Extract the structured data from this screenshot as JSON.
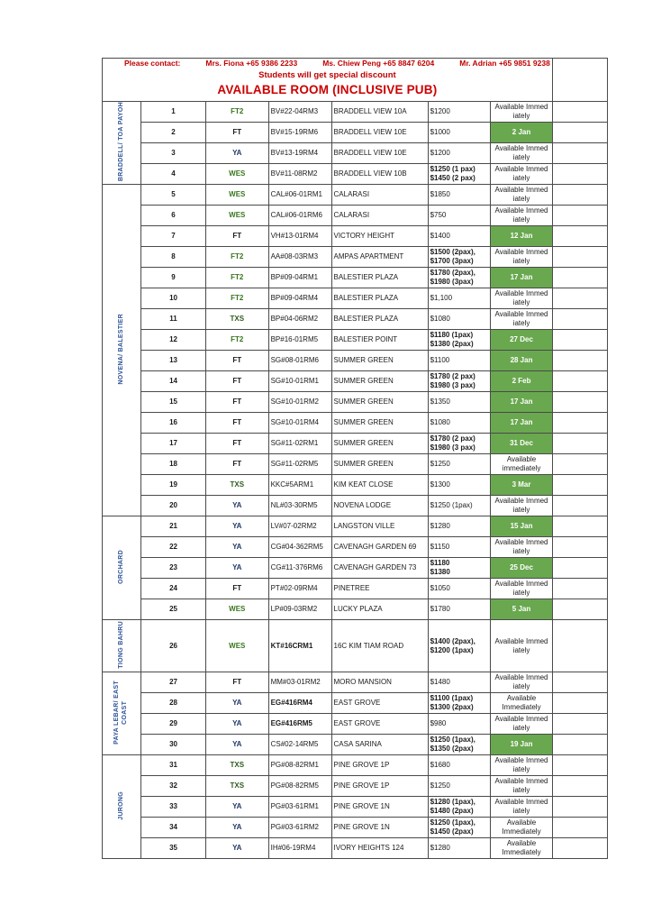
{
  "header": {
    "contact_label": "Please contact:",
    "contacts": [
      "Mrs. Fiona +65 9386 2233",
      "Ms. Chiew Peng +65 8847 6204",
      "Mr. Adrian +65 9851 9238"
    ],
    "discount_note": "Students will get special discount",
    "title": "AVAILABLE ROOM (INCLUSIVE PUB)"
  },
  "colors": {
    "header_red": "#c00000",
    "title_red": "#cc0000",
    "row_number_red": "#b42222",
    "region_blue": "#2f5496",
    "available_green": "#69a84f",
    "type_colors": {
      "FT": "#1a1a1a",
      "FT2": "#38761d",
      "YA": "#1f3864",
      "WES": "#38761d",
      "TXS": "#2e5b1f"
    }
  },
  "sections": [
    {
      "label": "BRADDELL/ TOA PAYOH",
      "from": 1,
      "to": 4
    },
    {
      "label": "NOVENA/ BALESTIER",
      "from": 5,
      "to": 20
    },
    {
      "label": "ORCHARD",
      "from": 21,
      "to": 25
    },
    {
      "label": "TIONG BAHRU",
      "from": 26,
      "to": 26
    },
    {
      "label": "PAYA LEBAR/ EAST\nCOAST",
      "from": 27,
      "to": 30
    },
    {
      "label": "JURONG",
      "from": 31,
      "to": 35
    }
  ],
  "rows": [
    {
      "no": "1",
      "type": "FT2",
      "code": "BV#22-04RM3",
      "name": "BRADDELL VIEW 10A",
      "price": "$1200",
      "avail": "Available Immed\niately"
    },
    {
      "no": "2",
      "type": "FT",
      "code": "BV#15-19RM6",
      "name": "BRADDELL VIEW 10E",
      "price": "$1000",
      "avail_date": "2 Jan"
    },
    {
      "no": "3",
      "type": "YA",
      "code": "BV#13-19RM4",
      "name": "BRADDELL VIEW 10E",
      "price": "$1200",
      "avail": "Available Immed\niately"
    },
    {
      "no": "4",
      "type": "WES",
      "code": "BV#11-08RM2",
      "name": "BRADDELL VIEW 10B",
      "price": "$1250 (1 pax)\n$1450 (2 pax)",
      "price_bold": true,
      "avail": "Available Immed\niately"
    },
    {
      "no": "5",
      "type": "WES",
      "code": "CAL#06-01RM1",
      "name": "CALARASI",
      "price": "$1850",
      "avail": "Available Immed\niately"
    },
    {
      "no": "6",
      "type": "WES",
      "code": "CAL#06-01RM6",
      "name": "CALARASI",
      "price": "$750",
      "avail": "Available Immed\niately"
    },
    {
      "no": "7",
      "type": "FT",
      "code": "VH#13-01RM4",
      "name": "VICTORY HEIGHT",
      "price": "$1400",
      "avail_date": "12 Jan"
    },
    {
      "no": "8",
      "type": "FT2",
      "code": "AA#08-03RM3",
      "name": "AMPAS APARTMENT",
      "price": "$1500 (2pax),\n$1700 (3pax)",
      "price_bold": true,
      "avail": "Available Immed\niately"
    },
    {
      "no": "9",
      "type": "FT2",
      "code": "BP#09-04RM1",
      "name": "BALESTIER PLAZA",
      "price": "$1780 (2pax),\n$1980 (3pax)",
      "price_bold": true,
      "avail_date": "17 Jan"
    },
    {
      "no": "10",
      "type": "FT2",
      "code": "BP#09-04RM4",
      "name": "BALESTIER PLAZA",
      "price": "$1,100",
      "avail": "Available Immed\niately"
    },
    {
      "no": "11",
      "type": "TXS",
      "code": "BP#04-06RM2",
      "name": "BALESTIER PLAZA",
      "price": "$1080",
      "avail": "Available Immed\niately"
    },
    {
      "no": "12",
      "type": "FT2",
      "code": "BP#16-01RM5",
      "name": "BALESTIER POINT",
      "price": "$1180 (1pax)\n$1380 (2pax)",
      "price_bold": true,
      "avail_date": "27 Dec"
    },
    {
      "no": "13",
      "type": "FT",
      "code": "SG#08-01RM6",
      "name": "SUMMER GREEN",
      "price": "$1100",
      "avail_date": "28 Jan"
    },
    {
      "no": "14",
      "type": "FT",
      "code": "SG#10-01RM1",
      "name": "SUMMER GREEN",
      "price": "$1780 (2 pax)\n$1980 (3 pax)",
      "price_bold": true,
      "avail_date": "2 Feb"
    },
    {
      "no": "15",
      "type": "FT",
      "code": "SG#10-01RM2",
      "name": "SUMMER GREEN",
      "price": "$1350",
      "avail_date": "17 Jan"
    },
    {
      "no": "16",
      "type": "FT",
      "code": "SG#10-01RM4",
      "name": "SUMMER GREEN",
      "price": "$1080",
      "avail_date": "17 Jan"
    },
    {
      "no": "17",
      "type": "FT",
      "code": "SG#11-02RM1",
      "name": "SUMMER GREEN",
      "price": "$1780 (2 pax)\n$1980 (3 pax)",
      "price_bold": true,
      "avail_date": "31 Dec"
    },
    {
      "no": "18",
      "type": "FT",
      "code": "SG#11-02RM5",
      "name": "SUMMER GREEN",
      "price": "$1250",
      "avail": "Available\nimmediately"
    },
    {
      "no": "19",
      "type": "TXS",
      "code": "KKC#5ARM1",
      "name": "KIM KEAT CLOSE",
      "price": "$1300",
      "avail_date": "3 Mar"
    },
    {
      "no": "20",
      "type": "YA",
      "code": "NL#03-30RM5",
      "name": "NOVENA LODGE",
      "price": "$1250 (1pax)",
      "avail": "Available Immed\niately"
    },
    {
      "no": "21",
      "type": "YA",
      "code": "LV#07-02RM2",
      "name": "LANGSTON VILLE",
      "price": "$1280",
      "avail_date": "15 Jan"
    },
    {
      "no": "22",
      "type": "YA",
      "code": "CG#04-362RM5",
      "name": "CAVENAGH GARDEN 69",
      "price": "$1150",
      "avail": "Available Immed\niately"
    },
    {
      "no": "23",
      "type": "YA",
      "code": "CG#11-376RM6",
      "name": "CAVENAGH GARDEN 73",
      "price": "$1180\n$1380",
      "price_bold": true,
      "avail_date": "25 Dec"
    },
    {
      "no": "24",
      "type": "FT",
      "code": "PT#02-09RM4",
      "name": "PINETREE",
      "price": "$1050",
      "avail": "Available Immed\niately"
    },
    {
      "no": "25",
      "type": "WES",
      "code": "LP#09-03RM2",
      "name": "LUCKY PLAZA",
      "price": "$1780",
      "avail_date": "5 Jan"
    },
    {
      "no": "26",
      "type": "WES",
      "code": "KT#16CRM1",
      "code_bold": true,
      "name": "16C KIM TIAM ROAD",
      "price": "$1400 (2pax),\n$1200 (1pax)",
      "price_bold": true,
      "avail": "Available Immed\niately",
      "tall": true
    },
    {
      "no": "27",
      "type": "FT",
      "code": "MM#03-01RM2",
      "name": "MORO MANSION",
      "price": "$1480",
      "avail": "Available Immed\niately"
    },
    {
      "no": "28",
      "type": "YA",
      "code": "EG#416RM4",
      "code_bold": true,
      "name": "EAST GROVE",
      "price": "$1100 (1pax)\n$1300 (2pax)",
      "price_bold": true,
      "avail": "Available\nImmediately"
    },
    {
      "no": "29",
      "type": "YA",
      "code": "EG#416RM5",
      "code_bold": true,
      "name": "EAST GROVE",
      "price": "$980",
      "avail": "Available Immed\niately"
    },
    {
      "no": "30",
      "type": "YA",
      "code": "CS#02-14RM5",
      "name": "CASA SARINA",
      "price": "$1250 (1pax),\n$1350 (2pax)",
      "price_bold": true,
      "avail_date": "19 Jan"
    },
    {
      "no": "31",
      "type": "TXS",
      "code": "PG#08-82RM1",
      "name": "PINE GROVE 1P",
      "price": "$1680",
      "avail": "Available Immed\niately"
    },
    {
      "no": "32",
      "type": "TXS",
      "code": "PG#08-82RM5",
      "name": "PINE GROVE 1P",
      "price": "$1250",
      "avail": "Available Immed\niately"
    },
    {
      "no": "33",
      "type": "YA",
      "code": "PG#03-61RM1",
      "name": "PINE GROVE 1N",
      "price": "$1280 (1pax),\n$1480 (2pax)",
      "price_bold": true,
      "avail": "Available Immed\niately"
    },
    {
      "no": "34",
      "type": "YA",
      "code": "PG#03-61RM2",
      "name": "PINE GROVE 1N",
      "price": "$1250 (1pax),\n$1450 (2pax)",
      "price_bold": true,
      "avail": "Available\nImmediately"
    },
    {
      "no": "35",
      "type": "YA",
      "code": "IH#06-19RM4",
      "name": "IVORY HEIGHTS 124",
      "price": "$1280",
      "avail": "Available\nImmediately"
    }
  ]
}
